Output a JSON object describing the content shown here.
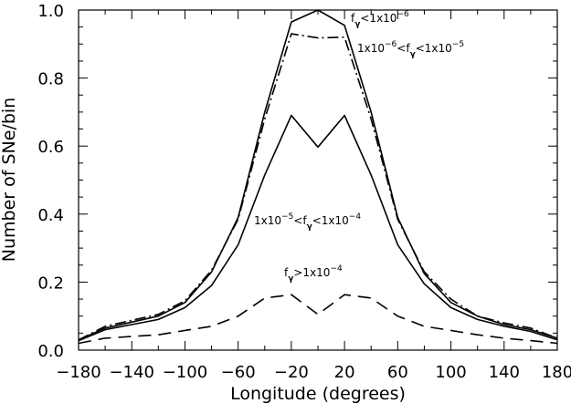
{
  "chart_data": {
    "type": "line",
    "xlabel": "Longitude (degrees)",
    "ylabel": "Number of SNe/bin",
    "xlim": [
      -180,
      180
    ],
    "ylim": [
      0.0,
      1.0
    ],
    "x_ticks": [
      -180,
      -140,
      -100,
      -60,
      -20,
      20,
      60,
      100,
      140,
      180
    ],
    "x_ticks_minor_step": 20,
    "y_ticks": [
      0.0,
      0.2,
      0.4,
      0.6,
      0.8,
      1.0
    ],
    "y_ticks_minor_step": 0.05,
    "grid": false,
    "x_tick_labels": [
      "−180",
      "−140",
      "−100",
      "−60",
      "−20",
      "20",
      "60",
      "100",
      "140",
      "180"
    ],
    "y_tick_labels": [
      "0.0",
      "0.2",
      "0.4",
      "0.6",
      "0.8",
      "1.0"
    ],
    "x": [
      -180,
      -160,
      -120,
      -100,
      -80,
      -60,
      -40,
      -20,
      0,
      20,
      40,
      60,
      80,
      100,
      120,
      140,
      160,
      180
    ],
    "series": [
      {
        "style": "solid",
        "values": [
          0.03,
          0.065,
          0.1,
          0.14,
          0.23,
          0.39,
          0.7,
          0.965,
          1.0,
          0.955,
          0.7,
          0.39,
          0.225,
          0.14,
          0.1,
          0.075,
          0.06,
          0.035
        ]
      },
      {
        "style": "dashdot",
        "values": [
          0.03,
          0.07,
          0.105,
          0.145,
          0.235,
          0.385,
          0.68,
          0.93,
          0.918,
          0.92,
          0.68,
          0.385,
          0.23,
          0.15,
          0.1,
          0.08,
          0.065,
          0.035
        ]
      },
      {
        "style": "solid",
        "values": [
          0.028,
          0.06,
          0.09,
          0.125,
          0.19,
          0.31,
          0.515,
          0.69,
          0.597,
          0.69,
          0.515,
          0.31,
          0.195,
          0.125,
          0.09,
          0.07,
          0.055,
          0.03
        ]
      },
      {
        "style": "dashed",
        "values": [
          0.02,
          0.035,
          0.045,
          0.058,
          0.07,
          0.1,
          0.153,
          0.163,
          0.105,
          0.163,
          0.153,
          0.1,
          0.07,
          0.058,
          0.045,
          0.035,
          0.028,
          0.02
        ]
      }
    ],
    "annotations": [
      {
        "id": "a1",
        "base": "f",
        "sub": "γ",
        "text": "<1x10",
        "sup": "−6"
      },
      {
        "id": "a2",
        "prefix": "1x10",
        "prefix_sup": "−6",
        "mid": "<f",
        "sub": "γ",
        "text": "<1x10",
        "sup": "−5"
      },
      {
        "id": "a3",
        "prefix": "1x10",
        "prefix_sup": "−5",
        "mid": "<f",
        "sub": "γ",
        "text": "<1x10",
        "sup": "−4"
      },
      {
        "id": "a4",
        "base": "f",
        "sub": "γ",
        "text": ">1x10",
        "sup": "−4"
      }
    ]
  }
}
